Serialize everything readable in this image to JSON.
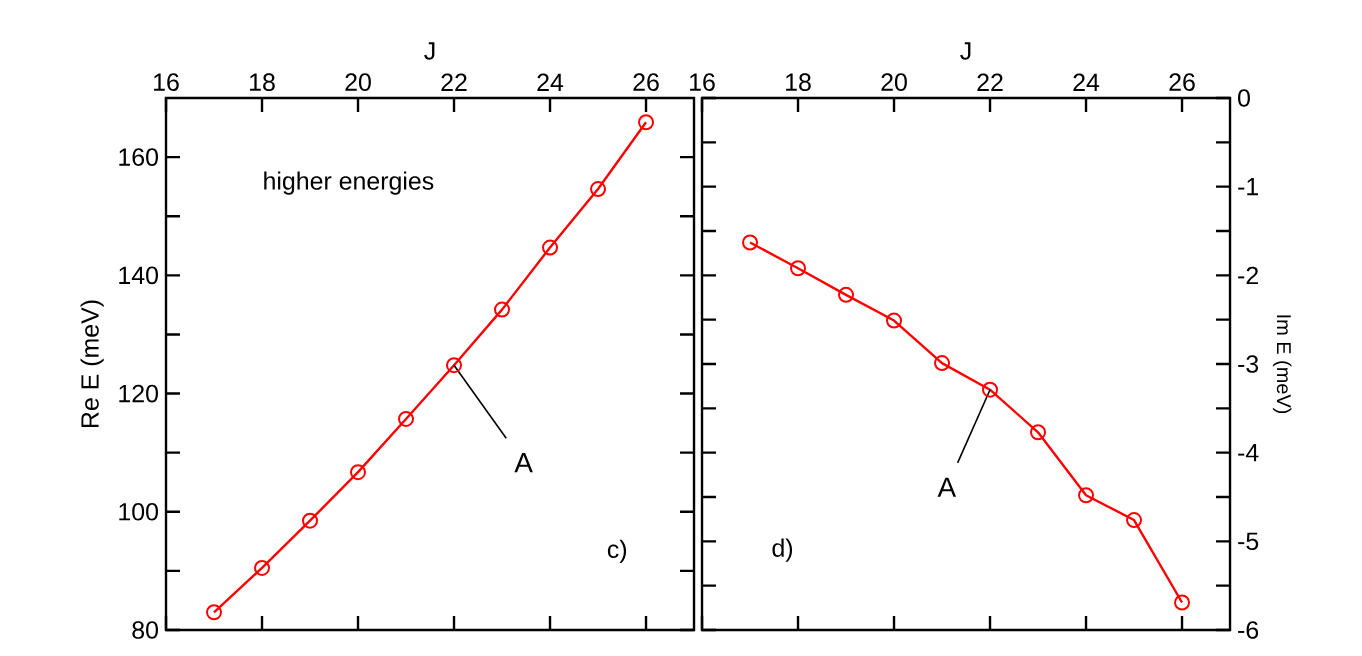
{
  "chart_data": [
    {
      "type": "line",
      "xlabel": "J",
      "ylabel": "Re E (meV)",
      "x": [
        17,
        18,
        19,
        20,
        21,
        22,
        23,
        24,
        25,
        26
      ],
      "series": [
        {
          "color": "#ff0000",
          "values": [
            83.0,
            90.5,
            98.5,
            106.7,
            115.7,
            124.8,
            134.2,
            144.7,
            154.6,
            165.9
          ]
        }
      ],
      "xlim": [
        16,
        27
      ],
      "xticks": [
        16,
        18,
        20,
        22,
        24,
        26
      ],
      "ylim": [
        80,
        170
      ],
      "yticks": [
        80,
        100,
        120,
        140,
        160
      ],
      "marker": "circle",
      "line_style": "solid",
      "annotations": [
        "higher energies",
        "c)",
        {
          "text": "A",
          "x": 22,
          "y": 124.8
        }
      ]
    },
    {
      "type": "line",
      "xlabel": "J",
      "ylabel": "Im E (meV)",
      "x": [
        17,
        18,
        19,
        20,
        21,
        22,
        23,
        24,
        25,
        26
      ],
      "series": [
        {
          "color": "#ff0000",
          "values": [
            -1.63,
            -1.92,
            -2.22,
            -2.51,
            -2.99,
            -3.29,
            -3.77,
            -4.48,
            -4.76,
            -5.69
          ]
        }
      ],
      "xlim": [
        16,
        27
      ],
      "xticks": [
        16,
        18,
        20,
        22,
        24,
        26
      ],
      "ylim": [
        -6,
        0
      ],
      "yticks": [
        0,
        -1,
        -2,
        -3,
        -4,
        -5,
        -6
      ],
      "marker": "circle",
      "line_style": "solid",
      "annotations": [
        "d)",
        {
          "text": "A",
          "x": 22,
          "y": -3.29
        }
      ]
    }
  ]
}
